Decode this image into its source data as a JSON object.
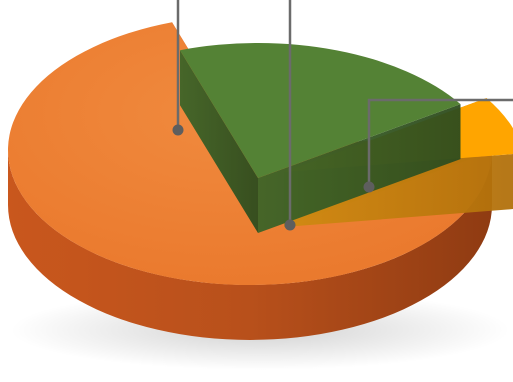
{
  "chart_data": {
    "type": "pie",
    "style": "3d-exploded",
    "title": "",
    "legend": "none",
    "series": [
      {
        "values": [
          72,
          21,
          7
        ],
        "colors": [
          "#ED7D31",
          "#548235",
          "#FFA500"
        ],
        "exploded": [
          false,
          true,
          true
        ]
      }
    ],
    "annotations": [
      {
        "kind": "leader-line",
        "target_slice": 0
      },
      {
        "kind": "leader-line",
        "target_slice": 1
      },
      {
        "kind": "leader-line",
        "target_slice": 2
      }
    ]
  }
}
